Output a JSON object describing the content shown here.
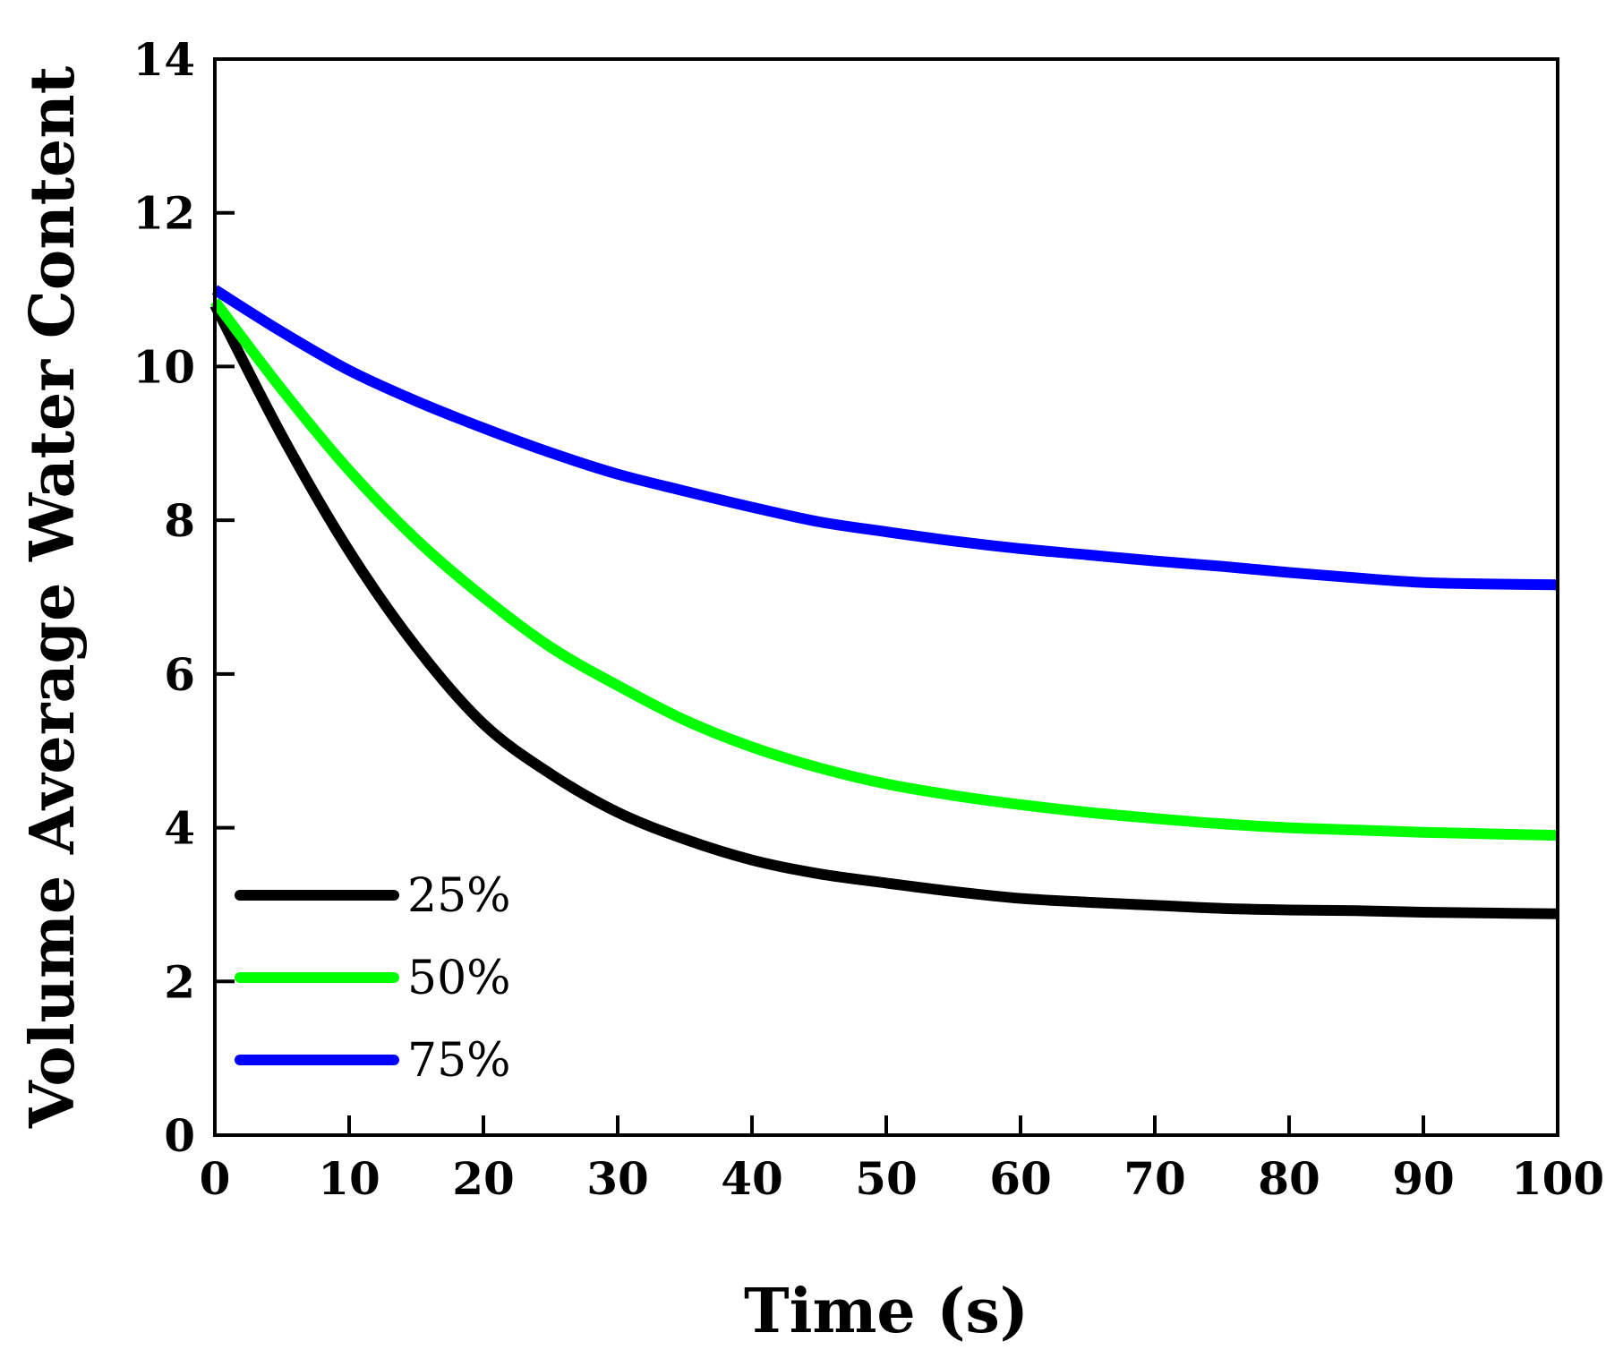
{
  "chart_data": {
    "type": "line",
    "title": "",
    "xlabel": "Time (s)",
    "ylabel": "Volume Average Water Content",
    "xlim": [
      0,
      100
    ],
    "ylim": [
      0,
      14
    ],
    "xticks": [
      0,
      10,
      20,
      30,
      40,
      50,
      60,
      70,
      80,
      90,
      100
    ],
    "yticks": [
      0,
      2,
      4,
      6,
      8,
      10,
      12,
      14
    ],
    "grid": false,
    "legend_position": "bottom-left",
    "series": [
      {
        "name": "25%",
        "color": "#000000",
        "x": [
          0,
          5,
          10,
          15,
          20,
          25,
          30,
          35,
          40,
          45,
          50,
          55,
          60,
          65,
          70,
          75,
          80,
          85,
          90,
          95,
          100
        ],
        "y": [
          10.8,
          9.1,
          7.6,
          6.35,
          5.35,
          4.7,
          4.2,
          3.85,
          3.58,
          3.4,
          3.28,
          3.17,
          3.08,
          3.03,
          2.99,
          2.95,
          2.93,
          2.92,
          2.9,
          2.89,
          2.88
        ]
      },
      {
        "name": "50%",
        "color": "#00ff00",
        "x": [
          0,
          5,
          10,
          15,
          20,
          25,
          30,
          35,
          40,
          45,
          50,
          55,
          60,
          65,
          70,
          75,
          80,
          85,
          90,
          95,
          100
        ],
        "y": [
          10.85,
          9.7,
          8.65,
          7.75,
          7.0,
          6.35,
          5.85,
          5.4,
          5.05,
          4.78,
          4.57,
          4.42,
          4.3,
          4.2,
          4.12,
          4.05,
          4.0,
          3.97,
          3.94,
          3.92,
          3.9
        ]
      },
      {
        "name": "75%",
        "color": "#0000ff",
        "x": [
          0,
          5,
          10,
          15,
          20,
          25,
          30,
          35,
          40,
          45,
          50,
          55,
          60,
          65,
          70,
          75,
          80,
          85,
          90,
          95,
          100
        ],
        "y": [
          11.0,
          10.45,
          9.95,
          9.55,
          9.2,
          8.88,
          8.6,
          8.38,
          8.17,
          7.98,
          7.85,
          7.73,
          7.63,
          7.55,
          7.47,
          7.4,
          7.32,
          7.25,
          7.19,
          7.17,
          7.16
        ]
      }
    ]
  }
}
